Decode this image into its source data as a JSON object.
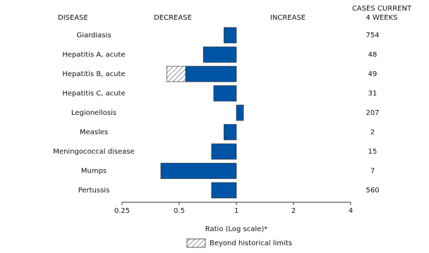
{
  "chart_data": {
    "type": "bar",
    "orientation": "horizontal",
    "log_scale": true,
    "headers": {
      "disease": "DISEASE",
      "decrease": "DECREASE",
      "increase": "INCREASE",
      "cases": [
        "CASES CURRENT",
        "4 WEEKS"
      ]
    },
    "categories": [
      "Giardiasis",
      "Hepatitis A, acute",
      "Hepatitis B, acute",
      "Hepatitis C, acute",
      "Legionellosis",
      "Measles",
      "Meningococcal disease",
      "Mumps",
      "Pertussis"
    ],
    "values": [
      0.86,
      0.67,
      0.43,
      0.76,
      1.09,
      0.86,
      0.74,
      0.4,
      0.74
    ],
    "historical_limit": [
      null,
      null,
      0.54,
      null,
      null,
      null,
      null,
      null,
      null
    ],
    "cases": [
      754,
      48,
      49,
      31,
      207,
      2,
      15,
      7,
      560
    ],
    "color": "#0054a6",
    "xlim": [
      0.25,
      4
    ],
    "xticks": [
      0.25,
      0.5,
      1,
      2,
      4
    ],
    "xlabel": "Ratio (Log scale)*",
    "legend": "Beyond historical limits"
  }
}
